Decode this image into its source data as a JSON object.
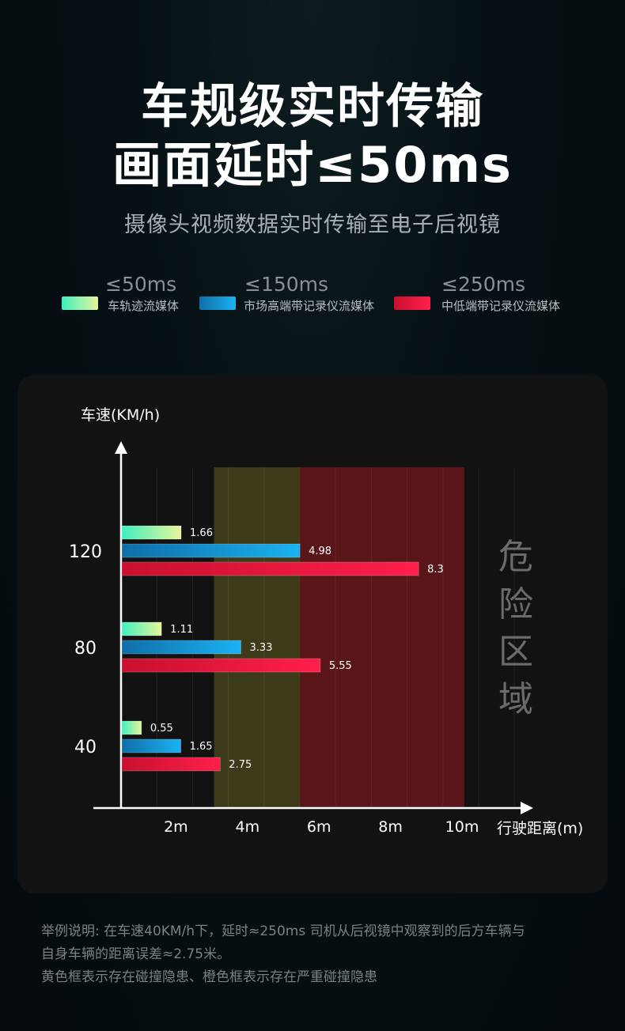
{
  "header": {
    "title_line1": "车规级实时传输",
    "title_line2": "画面延时≤50ms",
    "subtitle": "摄像头视频数据实时传输至电子后视镜"
  },
  "legend": [
    {
      "latency": "≤50ms",
      "label": "车轨迹流媒体",
      "color": "#7ef0b8"
    },
    {
      "latency": "≤150ms",
      "label": "市场高端带记录仪流媒体",
      "color": "#1aa8ee"
    },
    {
      "latency": "≤250ms",
      "label": "中低端带记录仪流媒体",
      "color": "#e0153c"
    }
  ],
  "chart_data": {
    "type": "bar",
    "orientation": "horizontal",
    "ylabel": "车速(KM/h)",
    "xlabel": "行驶距离(m)",
    "categories": [
      "120",
      "80",
      "40"
    ],
    "x_ticks": [
      "2m",
      "4m",
      "6m",
      "8m",
      "10m"
    ],
    "xlim": [
      0,
      10
    ],
    "series": [
      {
        "name": "车轨迹流媒体",
        "values": [
          1.66,
          1.11,
          0.55
        ]
      },
      {
        "name": "市场高端带记录仪流媒体",
        "values": [
          4.98,
          3.33,
          1.65
        ]
      },
      {
        "name": "中低端带记录仪流媒体",
        "values": [
          8.3,
          5.55,
          2.75
        ]
      }
    ],
    "value_labels": [
      [
        "1.66",
        "1.11",
        "0.55"
      ],
      [
        "4.98",
        "3.33",
        "1.65"
      ],
      [
        "8.3",
        "5.55",
        "2.75"
      ]
    ],
    "zones": [
      {
        "type": "warning",
        "color": "#3c3a18"
      },
      {
        "type": "danger",
        "color": "#5a1518"
      }
    ],
    "danger_label": [
      "危",
      "险",
      "区",
      "域"
    ]
  },
  "notes": {
    "line1": "举例说明: 在车速40KM/h下，延时≈250ms 司机从后视镜中观察到的后方车辆与",
    "line2": "自身车辆的距离误差≈2.75米。",
    "line3": "黄色框表示存在碰撞隐患、橙色框表示存在严重碰撞隐患"
  }
}
